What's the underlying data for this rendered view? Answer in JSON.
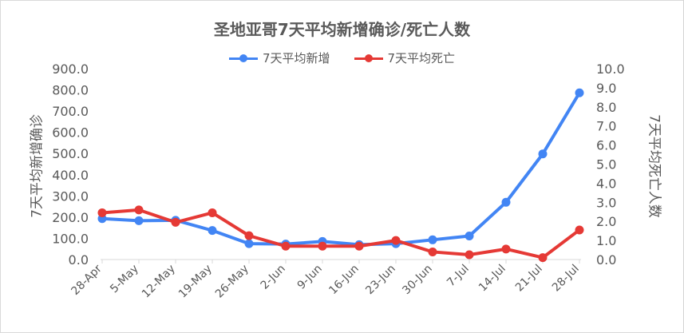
{
  "chart_data": {
    "type": "line",
    "title": "圣地亚哥7天平均新增确诊/死亡人数",
    "categories": [
      "28-Apr",
      "5-May",
      "12-May",
      "19-May",
      "26-May",
      "2-Jun",
      "9-Jun",
      "16-Jun",
      "23-Jun",
      "30-Jun",
      "7-Jul",
      "14-Jul",
      "21-Jul",
      "28-Jul"
    ],
    "ylabel": "7天平均新增确诊",
    "y2label": "7天平均死亡人数",
    "ylim": [
      0,
      900
    ],
    "y2lim": [
      0,
      10
    ],
    "yticks": [
      "0.0",
      "100.0",
      "200.0",
      "300.0",
      "400.0",
      "500.0",
      "600.0",
      "700.0",
      "800.0",
      "900.0"
    ],
    "y2ticks": [
      "0.0",
      "1.0",
      "2.0",
      "3.0",
      "4.0",
      "5.0",
      "6.0",
      "7.0",
      "8.0",
      "9.0",
      "10.0"
    ],
    "grid": false,
    "legend_position": "top",
    "series": [
      {
        "name": "7天平均新增",
        "axis": "left",
        "color": "#4285f4",
        "values": [
          193,
          183,
          185,
          137,
          75,
          73,
          85,
          70,
          75,
          93,
          111,
          270,
          498,
          786
        ]
      },
      {
        "name": "7天平均死亡",
        "axis": "right",
        "color": "#e53935",
        "values": [
          2.45,
          2.6,
          1.95,
          2.45,
          1.25,
          0.7,
          0.7,
          0.7,
          1.0,
          0.4,
          0.25,
          0.55,
          0.1,
          1.55
        ]
      }
    ]
  }
}
